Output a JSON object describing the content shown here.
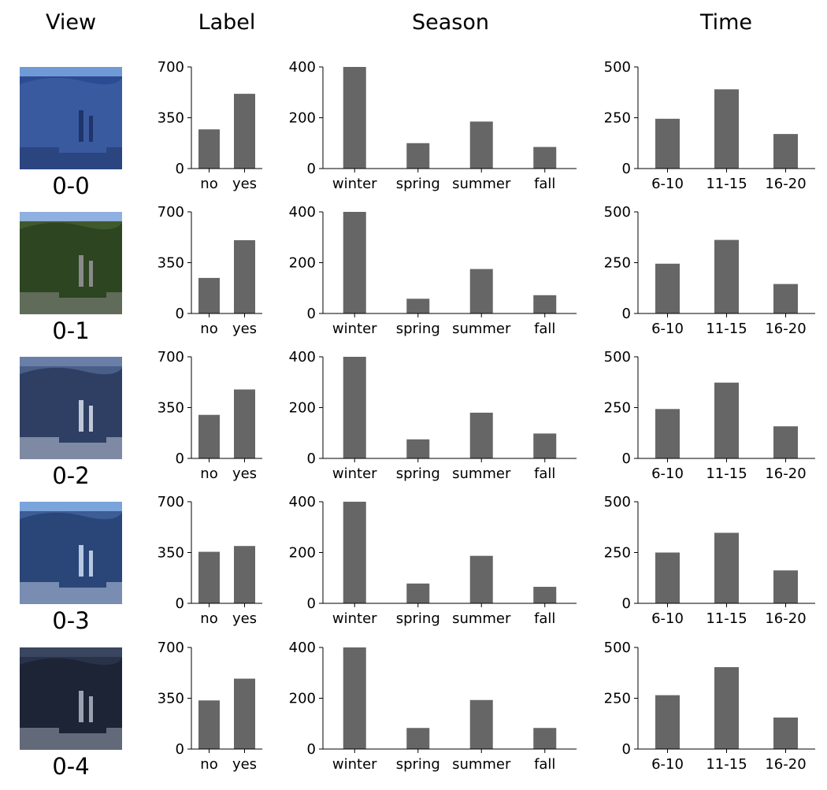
{
  "headers": {
    "view": "View",
    "label": "Label",
    "season": "Season",
    "time": "Time"
  },
  "colors": {
    "bar": "#666666",
    "axis": "#000000",
    "text": "#000000"
  },
  "chart_data": {
    "type": "bar",
    "rows": [
      {
        "view": "0-0",
        "image_palette": [
          "#6f9ad6",
          "#2c4b93",
          "#3a5aa0",
          "#1f3468"
        ],
        "label": {
          "categories": [
            "no",
            "yes"
          ],
          "values": [
            270,
            515
          ],
          "ylim": [
            0,
            700
          ],
          "yticks": [
            "0",
            "350",
            "700"
          ]
        },
        "season": {
          "categories": [
            "winter",
            "spring",
            "summer",
            "fall"
          ],
          "values": [
            400,
            100,
            185,
            85
          ],
          "ylim": [
            0,
            400
          ],
          "yticks": [
            "0",
            "200",
            "400"
          ]
        },
        "time": {
          "categories": [
            "6-10",
            "11-15",
            "16-20"
          ],
          "values": [
            245,
            390,
            170
          ],
          "ylim": [
            0,
            500
          ],
          "yticks": [
            "0",
            "250",
            "500"
          ]
        }
      },
      {
        "view": "0-1",
        "image_palette": [
          "#8fb0e0",
          "#3f5a2c",
          "#2d4520",
          "#8a8a8a"
        ],
        "label": {
          "categories": [
            "no",
            "yes"
          ],
          "values": [
            245,
            505
          ],
          "ylim": [
            0,
            700
          ],
          "yticks": [
            "0",
            "350",
            "700"
          ]
        },
        "season": {
          "categories": [
            "winter",
            "spring",
            "summer",
            "fall"
          ],
          "values": [
            400,
            58,
            175,
            72
          ],
          "ylim": [
            0,
            400
          ],
          "yticks": [
            "0",
            "200",
            "400"
          ]
        },
        "time": {
          "categories": [
            "6-10",
            "11-15",
            "16-20"
          ],
          "values": [
            245,
            362,
            145
          ],
          "ylim": [
            0,
            500
          ],
          "yticks": [
            "0",
            "250",
            "500"
          ]
        }
      },
      {
        "view": "0-2",
        "image_palette": [
          "#6a7fa8",
          "#4a5f88",
          "#2f3f63",
          "#c0c8d8"
        ],
        "label": {
          "categories": [
            "no",
            "yes"
          ],
          "values": [
            300,
            475
          ],
          "ylim": [
            0,
            700
          ],
          "yticks": [
            "0",
            "350",
            "700"
          ]
        },
        "season": {
          "categories": [
            "winter",
            "spring",
            "summer",
            "fall"
          ],
          "values": [
            400,
            75,
            180,
            98
          ],
          "ylim": [
            0,
            400
          ],
          "yticks": [
            "0",
            "200",
            "400"
          ]
        },
        "time": {
          "categories": [
            "6-10",
            "11-15",
            "16-20"
          ],
          "values": [
            243,
            373,
            158
          ],
          "ylim": [
            0,
            500
          ],
          "yticks": [
            "0",
            "250",
            "500"
          ]
        }
      },
      {
        "view": "0-3",
        "image_palette": [
          "#7aa4dc",
          "#3d5d96",
          "#2a4578",
          "#b8c8e0"
        ],
        "label": {
          "categories": [
            "no",
            "yes"
          ],
          "values": [
            355,
            395
          ],
          "ylim": [
            0,
            700
          ],
          "yticks": [
            "0",
            "350",
            "700"
          ]
        },
        "season": {
          "categories": [
            "winter",
            "spring",
            "summer",
            "fall"
          ],
          "values": [
            400,
            78,
            187,
            65
          ],
          "ylim": [
            0,
            400
          ],
          "yticks": [
            "0",
            "200",
            "400"
          ]
        },
        "time": {
          "categories": [
            "6-10",
            "11-15",
            "16-20"
          ],
          "values": [
            250,
            347,
            162
          ],
          "ylim": [
            0,
            500
          ],
          "yticks": [
            "0",
            "250",
            "500"
          ]
        }
      },
      {
        "view": "0-4",
        "image_palette": [
          "#3a4660",
          "#283248",
          "#1d2436",
          "#9aa2b0"
        ],
        "label": {
          "categories": [
            "no",
            "yes"
          ],
          "values": [
            335,
            485
          ],
          "ylim": [
            0,
            700
          ],
          "yticks": [
            "0",
            "350",
            "700"
          ]
        },
        "season": {
          "categories": [
            "winter",
            "spring",
            "summer",
            "fall"
          ],
          "values": [
            400,
            83,
            193,
            83
          ],
          "ylim": [
            0,
            400
          ],
          "yticks": [
            "0",
            "200",
            "400"
          ]
        },
        "time": {
          "categories": [
            "6-10",
            "11-15",
            "16-20"
          ],
          "values": [
            265,
            403,
            155
          ],
          "ylim": [
            0,
            500
          ],
          "yticks": [
            "0",
            "250",
            "500"
          ]
        }
      }
    ]
  }
}
